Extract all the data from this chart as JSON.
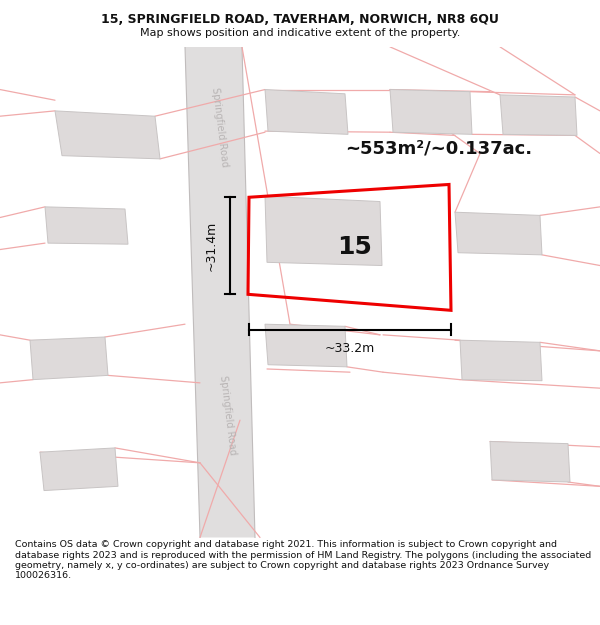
{
  "title_line1": "15, SPRINGFIELD ROAD, TAVERHAM, NORWICH, NR8 6QU",
  "title_line2": "Map shows position and indicative extent of the property.",
  "footer": "Contains OS data © Crown copyright and database right 2021. This information is subject to Crown copyright and database rights 2023 and is reproduced with the permission of HM Land Registry. The polygons (including the associated geometry, namely x, y co-ordinates) are subject to Crown copyright and database rights 2023 Ordnance Survey 100026316.",
  "area_label": "~553m²/~0.137ac.",
  "number_label": "15",
  "width_label": "~33.2m",
  "height_label": "~31.4m",
  "map_bg": "#ffffff",
  "road_fill": "#e0dede",
  "road_text_color": "#b8b4b4",
  "building_fill": "#dedada",
  "building_stroke": "#c8c4c4",
  "red_line_color": "#ee0000",
  "pink_line_color": "#f0aaaa",
  "black_color": "#111111",
  "title_bg": "#ffffff",
  "footer_bg": "#ffffff"
}
